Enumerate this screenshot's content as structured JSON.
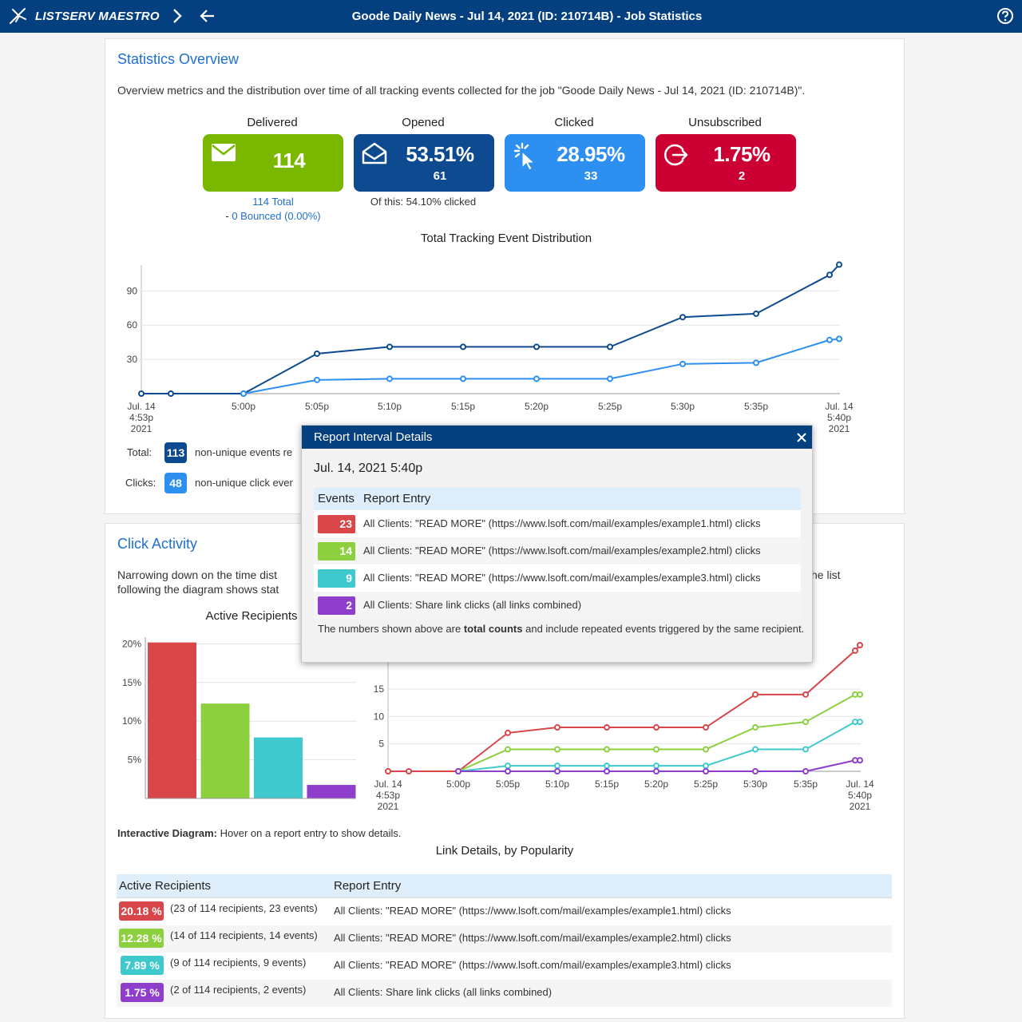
{
  "app": {
    "brand": "LISTSERV MAESTRO",
    "title": "Goode Daily News - Jul 14, 2021 (ID: 210714B) - Job Statistics"
  },
  "overview": {
    "title": "Statistics Overview",
    "description": "Overview metrics and the distribution over time of all tracking events collected for the job \"Goode Daily News - Jul 14, 2021 (ID: 210714B)\".",
    "metrics": [
      {
        "label": "Delivered",
        "value": "114",
        "sub": "",
        "color": "#7ab800",
        "icon": "envelope-icon"
      },
      {
        "label": "Opened",
        "value": "53.51%",
        "sub": "61",
        "color": "#0d4a8f",
        "icon": "open-envelope-icon"
      },
      {
        "label": "Clicked",
        "value": "28.95%",
        "sub": "33",
        "color": "#2d8ff0",
        "icon": "click-cursor-icon"
      },
      {
        "label": "Unsubscribed",
        "value": "1.75%",
        "sub": "2",
        "color": "#cc0033",
        "icon": "exit-icon"
      }
    ],
    "delivered_total": "114 Total",
    "delivered_bounced_prefix": "- ",
    "delivered_bounced": "0 Bounced (0.00%)",
    "opened_note": "Of this: 54.10% clicked"
  },
  "distribution_chart": {
    "title": "Total Tracking Event Distribution",
    "legend": [
      {
        "label": "Total:",
        "badge": "113",
        "text": "non-unique events re",
        "color": "#0d4a8f"
      },
      {
        "label": "Clicks:",
        "badge": "48",
        "text": "non-unique click ever",
        "color": "#2d8ff0"
      }
    ]
  },
  "chart_data": [
    {
      "type": "line",
      "title": "Total Tracking Event Distribution",
      "x": [
        "Jul. 14 4:53p 2021",
        "",
        "5:00p",
        "5:05p",
        "5:10p",
        "5:15p",
        "5:20p",
        "5:25p",
        "5:30p",
        "5:35p",
        "",
        "Jul. 14 5:40p 2021"
      ],
      "x_ticks": [
        "Jul. 14|4:53p|2021",
        "5:00p",
        "5:05p",
        "5:10p",
        "5:15p",
        "5:20p",
        "5:25p",
        "5:30p",
        "5:35p",
        "Jul. 14|5:40p|2021"
      ],
      "y_ticks": [
        30,
        60,
        90
      ],
      "ylim": [
        0,
        113
      ],
      "series": [
        {
          "name": "Total",
          "color": "#0d4a8f",
          "values": [
            0,
            0,
            0,
            35,
            41,
            41,
            41,
            41,
            67,
            70,
            104,
            113
          ]
        },
        {
          "name": "Clicks",
          "color": "#2d8ff0",
          "values": [
            null,
            null,
            0,
            12,
            13,
            13,
            13,
            13,
            26,
            27,
            47,
            48
          ]
        }
      ]
    },
    {
      "type": "bar",
      "title": "Active Recipients",
      "y_ticks": [
        "5%",
        "10%",
        "15%",
        "20%"
      ],
      "ylim": [
        0,
        20.18
      ],
      "values": [
        20.18,
        12.28,
        7.89,
        1.75
      ],
      "colors": [
        "#d9464a",
        "#8ccf3f",
        "#40c9cc",
        "#8e3ecb"
      ]
    },
    {
      "type": "line",
      "x_ticks": [
        "Jul. 14|4:53p|2021",
        "5:00p",
        "5:05p",
        "5:10p",
        "5:15p",
        "5:20p",
        "5:25p",
        "5:30p",
        "5:35p",
        "Jul. 14|5:40p|2021"
      ],
      "y_ticks": [
        5,
        10,
        15
      ],
      "ylim": [
        0,
        23
      ],
      "series": [
        {
          "color": "#d9464a",
          "values": [
            0,
            0,
            0,
            7,
            8,
            8,
            8,
            8,
            14,
            14,
            22,
            23
          ]
        },
        {
          "color": "#8ccf3f",
          "values": [
            null,
            null,
            0,
            4,
            4,
            4,
            4,
            4,
            8,
            9,
            14,
            14
          ]
        },
        {
          "color": "#40c9cc",
          "values": [
            null,
            null,
            0,
            1,
            1,
            1,
            1,
            1,
            4,
            4,
            9,
            9
          ]
        },
        {
          "color": "#8e3ecb",
          "values": [
            null,
            null,
            0,
            0,
            0,
            0,
            0,
            0,
            0,
            0,
            2,
            2
          ]
        }
      ]
    }
  ],
  "click_activity": {
    "title": "Click Activity",
    "desc_line1": "Narrowing down on the time dist",
    "desc_line2": "following the diagram shows stat",
    "desc_right": "he list",
    "bar_title": "Active Recipients",
    "hint_bold": "Interactive Diagram:",
    "hint_text": " Hover on a report entry to show details."
  },
  "links_table": {
    "title": "Link Details, by Popularity",
    "col1": "Active Recipients",
    "col2": "Report Entry",
    "rows": [
      {
        "pct": "20.18 %",
        "count": "(23 of 114 recipients, 23 events)",
        "entry": "All Clients: \"READ MORE\" (https://www.lsoft.com/mail/examples/example1.html) clicks",
        "color": "#d9464a"
      },
      {
        "pct": "12.28 %",
        "count": "(14 of 114 recipients, 14 events)",
        "entry": "All Clients: \"READ MORE\" (https://www.lsoft.com/mail/examples/example2.html) clicks",
        "color": "#8ccf3f"
      },
      {
        "pct": "7.89 %",
        "count": "(9 of 114 recipients, 9 events)",
        "entry": "All Clients: \"READ MORE\" (https://www.lsoft.com/mail/examples/example3.html) clicks",
        "color": "#40c9cc"
      },
      {
        "pct": "1.75 %",
        "count": "(2 of 114 recipients, 2 events)",
        "entry": "All Clients: Share link clicks (all links combined)",
        "color": "#8e3ecb"
      }
    ]
  },
  "popup": {
    "title": "Report Interval Details",
    "date": "Jul. 14, 2021 5:40p",
    "col1": "Events",
    "col2": "Report Entry",
    "rows": [
      {
        "events": "23",
        "entry": "All Clients: \"READ MORE\" (https://www.lsoft.com/mail/examples/example1.html) clicks",
        "color": "#d9464a"
      },
      {
        "events": "14",
        "entry": "All Clients: \"READ MORE\" (https://www.lsoft.com/mail/examples/example2.html) clicks",
        "color": "#8ccf3f"
      },
      {
        "events": "9",
        "entry": "All Clients: \"READ MORE\" (https://www.lsoft.com/mail/examples/example3.html) clicks",
        "color": "#40c9cc"
      },
      {
        "events": "2",
        "entry": "All Clients: Share link clicks (all links combined)",
        "color": "#8e3ecb"
      }
    ],
    "note_pre": "The numbers shown above are ",
    "note_bold": "total counts",
    "note_post": " and include repeated events triggered by the same recipient."
  }
}
